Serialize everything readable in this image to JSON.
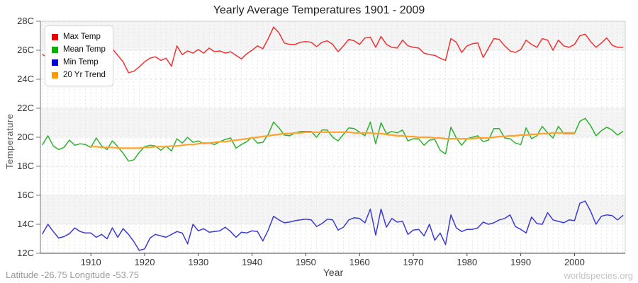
{
  "title": "Yearly Average Temperatures 1901 - 2009",
  "y_axis": {
    "label": "Temperature",
    "tick_labels": [
      "28C",
      "26C",
      "24C",
      "22C",
      "20C",
      "18C",
      "16C",
      "14C",
      "12C"
    ],
    "min": 12,
    "max": 28,
    "step": 2
  },
  "x_axis": {
    "label": "Year",
    "tick_labels": [
      "1910",
      "1920",
      "1930",
      "1940",
      "1950",
      "1960",
      "1970",
      "1980",
      "1990",
      "2000"
    ],
    "min": 1901,
    "max": 2009
  },
  "legend": {
    "items": [
      {
        "label": "Max Temp",
        "color": "#ee0000"
      },
      {
        "label": "Mean Temp",
        "color": "#00b400"
      },
      {
        "label": "Min Temp",
        "color": "#0000dd"
      },
      {
        "label": "20 Yr Trend",
        "color": "#ff9900"
      }
    ]
  },
  "footer": {
    "left": "Latitude -26.75 Longitude -53.75",
    "right": "worldspecies.org"
  },
  "style_colors": {
    "max_line": "#ee3333",
    "mean_line": "#2eb22e",
    "min_line": "#3b3bd4",
    "trend_line": "#ffa32e",
    "band_gray": "#f4f4f4",
    "grid": "#e3e3e3",
    "axis": "#777777",
    "axis_bottom": "#444444",
    "frame": "#d0d0d0",
    "tick_text": "#333333"
  },
  "chart_data": {
    "type": "line",
    "title": "Yearly Average Temperatures 1901 - 2009",
    "xlabel": "Year",
    "ylabel": "Temperature",
    "xlim": [
      1901,
      2009
    ],
    "ylim": [
      12,
      28
    ],
    "grid": true,
    "legend_position": "top-left",
    "gray_bands_c": [
      [
        26,
        28
      ],
      [
        20,
        22
      ],
      [
        14,
        16
      ]
    ],
    "x": [
      1901,
      1902,
      1903,
      1904,
      1905,
      1906,
      1907,
      1908,
      1909,
      1910,
      1911,
      1912,
      1913,
      1914,
      1915,
      1916,
      1917,
      1918,
      1919,
      1920,
      1921,
      1922,
      1923,
      1924,
      1925,
      1926,
      1927,
      1928,
      1929,
      1930,
      1931,
      1932,
      1933,
      1934,
      1935,
      1936,
      1937,
      1938,
      1939,
      1940,
      1941,
      1942,
      1943,
      1944,
      1945,
      1946,
      1947,
      1948,
      1949,
      1950,
      1951,
      1952,
      1953,
      1954,
      1955,
      1956,
      1957,
      1958,
      1959,
      1960,
      1961,
      1962,
      1963,
      1964,
      1965,
      1966,
      1967,
      1968,
      1969,
      1970,
      1971,
      1972,
      1973,
      1974,
      1975,
      1976,
      1977,
      1978,
      1979,
      1980,
      1981,
      1982,
      1983,
      1984,
      1985,
      1986,
      1987,
      1988,
      1989,
      1990,
      1991,
      1992,
      1993,
      1994,
      1995,
      1996,
      1997,
      1998,
      1999,
      2000,
      2001,
      2002,
      2003,
      2004,
      2005,
      2006,
      2007,
      2008,
      2009
    ],
    "series": [
      {
        "name": "Max Temp",
        "unit": "C",
        "values": [
          25.7,
          25.5,
          25.8,
          25.55,
          25.75,
          26.0,
          25.7,
          25.9,
          25.6,
          25.8,
          25.55,
          25.7,
          25.95,
          26.1,
          25.65,
          25.2,
          24.45,
          24.55,
          24.85,
          25.2,
          25.45,
          25.55,
          25.3,
          25.45,
          24.9,
          26.3,
          25.7,
          25.95,
          25.8,
          26.05,
          25.8,
          26.15,
          25.9,
          25.95,
          25.8,
          25.9,
          25.65,
          25.4,
          25.75,
          26.0,
          26.3,
          26.1,
          26.8,
          27.6,
          27.2,
          26.5,
          26.4,
          26.4,
          26.55,
          26.6,
          26.55,
          26.25,
          26.55,
          26.65,
          26.4,
          25.9,
          26.3,
          26.75,
          26.65,
          26.4,
          26.85,
          26.9,
          26.2,
          26.95,
          26.4,
          26.2,
          26.15,
          26.7,
          26.3,
          26.2,
          26.15,
          25.8,
          25.7,
          25.65,
          25.45,
          25.3,
          26.8,
          26.55,
          25.85,
          26.3,
          26.45,
          26.5,
          25.5,
          26.15,
          26.8,
          26.75,
          26.3,
          25.95,
          25.85,
          26.05,
          26.7,
          26.4,
          26.2,
          26.8,
          26.7,
          26.0,
          26.7,
          26.3,
          26.2,
          26.4,
          27.0,
          27.1,
          26.6,
          26.2,
          26.5,
          26.85,
          26.35,
          26.2,
          26.2
        ]
      },
      {
        "name": "Mean Temp",
        "unit": "C",
        "values": [
          19.5,
          20.1,
          19.4,
          19.15,
          19.3,
          19.8,
          19.45,
          19.55,
          19.5,
          19.3,
          19.95,
          19.4,
          19.15,
          19.75,
          19.35,
          18.9,
          18.35,
          18.45,
          18.95,
          19.35,
          19.45,
          19.4,
          19.1,
          19.4,
          19.05,
          19.9,
          19.6,
          20.0,
          19.65,
          19.75,
          19.55,
          19.6,
          19.5,
          19.7,
          19.85,
          19.95,
          19.25,
          19.5,
          19.7,
          20.0,
          19.6,
          19.65,
          20.2,
          21.05,
          20.65,
          20.15,
          20.1,
          20.3,
          20.4,
          20.4,
          20.4,
          20.0,
          20.5,
          20.5,
          20.0,
          19.75,
          20.2,
          20.65,
          20.6,
          20.35,
          20.1,
          21.05,
          19.55,
          21.0,
          20.25,
          20.4,
          20.3,
          20.5,
          19.75,
          19.9,
          19.9,
          19.45,
          19.8,
          19.85,
          19.1,
          18.85,
          20.7,
          19.95,
          19.45,
          19.9,
          20.0,
          20.1,
          19.7,
          19.8,
          20.6,
          20.6,
          19.95,
          19.9,
          19.6,
          19.5,
          20.65,
          19.9,
          20.1,
          20.75,
          20.3,
          19.95,
          20.75,
          20.25,
          20.25,
          20.25,
          21.1,
          21.3,
          20.8,
          20.1,
          20.45,
          20.7,
          20.5,
          20.15,
          20.4
        ]
      },
      {
        "name": "Min Temp",
        "unit": "C",
        "values": [
          13.35,
          14.0,
          13.5,
          13.05,
          13.15,
          13.35,
          13.75,
          13.5,
          13.4,
          13.4,
          13.1,
          13.3,
          13.0,
          13.75,
          13.1,
          13.7,
          13.3,
          12.8,
          12.2,
          12.3,
          13.05,
          13.3,
          13.2,
          13.1,
          13.3,
          13.5,
          13.4,
          12.65,
          14.0,
          13.55,
          13.7,
          13.45,
          13.5,
          13.55,
          13.8,
          13.5,
          13.1,
          13.45,
          13.4,
          13.55,
          13.5,
          12.85,
          13.6,
          14.55,
          14.3,
          14.1,
          14.15,
          14.25,
          14.3,
          14.35,
          14.3,
          13.85,
          14.05,
          14.35,
          14.3,
          13.6,
          13.8,
          14.3,
          14.45,
          14.4,
          14.1,
          15.05,
          13.25,
          15.05,
          13.8,
          14.4,
          14.15,
          14.2,
          13.3,
          13.6,
          13.65,
          13.2,
          14.0,
          12.9,
          13.4,
          12.6,
          14.65,
          13.75,
          13.5,
          13.65,
          13.65,
          13.75,
          14.15,
          14.0,
          14.1,
          14.3,
          14.4,
          14.65,
          13.85,
          13.65,
          13.4,
          14.5,
          14.05,
          14.0,
          14.8,
          14.3,
          14.2,
          14.1,
          14.3,
          14.25,
          15.45,
          15.6,
          14.9,
          14.0,
          14.55,
          14.65,
          14.6,
          14.3,
          14.6
        ]
      },
      {
        "name": "20 Yr Trend",
        "unit": "C",
        "values": [
          null,
          null,
          null,
          null,
          null,
          null,
          null,
          null,
          null,
          19.35,
          19.35,
          19.3,
          19.3,
          19.3,
          19.25,
          19.25,
          19.25,
          19.25,
          19.25,
          19.3,
          19.3,
          19.35,
          19.35,
          19.35,
          19.4,
          19.4,
          19.45,
          19.5,
          19.5,
          19.55,
          19.6,
          19.6,
          19.65,
          19.7,
          19.7,
          19.75,
          19.8,
          19.85,
          19.9,
          19.95,
          20.0,
          20.05,
          20.1,
          20.15,
          20.2,
          20.25,
          20.25,
          20.3,
          20.3,
          20.35,
          20.35,
          20.35,
          20.35,
          20.35,
          20.35,
          20.35,
          20.35,
          20.35,
          20.3,
          20.3,
          20.3,
          20.3,
          20.25,
          20.25,
          20.2,
          20.15,
          20.1,
          20.1,
          20.05,
          20.05,
          20.0,
          20.0,
          20.0,
          19.95,
          19.95,
          19.9,
          19.9,
          19.9,
          19.9,
          19.9,
          19.9,
          19.95,
          19.95,
          19.95,
          20.0,
          20.05,
          20.05,
          20.1,
          20.1,
          20.15,
          20.15,
          20.2,
          20.2,
          20.25,
          20.25,
          20.3,
          20.3,
          20.3,
          20.3,
          20.3,
          null,
          null,
          null,
          null,
          null,
          null,
          null,
          null,
          null
        ]
      }
    ]
  }
}
